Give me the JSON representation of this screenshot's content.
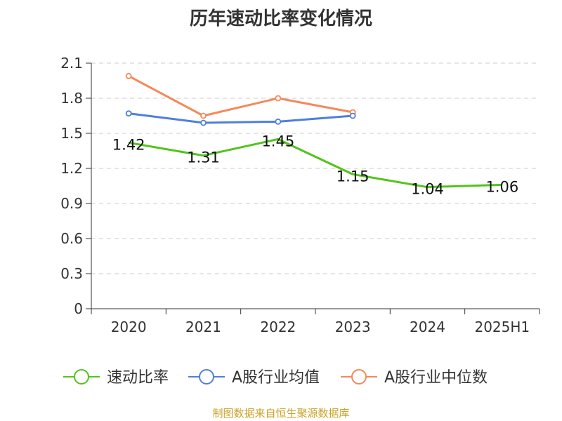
{
  "chart_data": {
    "type": "line",
    "title": "历年速动比率变化情况",
    "categories": [
      "2020",
      "2021",
      "2022",
      "2023",
      "2024",
      "2025H1"
    ],
    "ylim": [
      0,
      2.1
    ],
    "yticks": [
      "0",
      "0.3",
      "0.6",
      "0.9",
      "1.2",
      "1.5",
      "1.8",
      "2.1"
    ],
    "grid": true,
    "legend_position": "bottom",
    "series": [
      {
        "name": "速动比率",
        "color": "#52c41a",
        "values": [
          1.42,
          1.31,
          1.45,
          1.15,
          1.04,
          1.06
        ],
        "labels": [
          "1.42",
          "1.31",
          "1.45",
          "1.15",
          "1.04",
          "1.06"
        ]
      },
      {
        "name": "A股行业均值",
        "color": "#4e7fde",
        "values": [
          1.67,
          1.59,
          1.6,
          1.65,
          null,
          null
        ]
      },
      {
        "name": "A股行业中位数",
        "color": "#f4895a",
        "values": [
          1.99,
          1.65,
          1.8,
          1.68,
          null,
          null
        ]
      }
    ]
  },
  "source": "制图数据来自恒生聚源数据库",
  "source_color": "#c9a227"
}
